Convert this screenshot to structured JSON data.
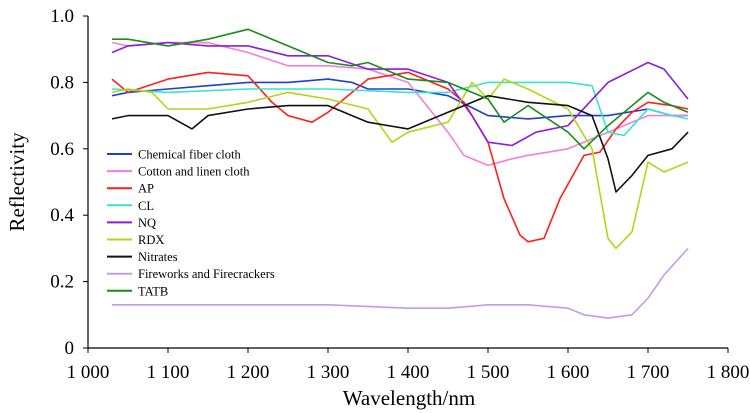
{
  "chart_data": {
    "type": "line",
    "title": "",
    "xlabel": "Wavelength/nm",
    "ylabel": "Reflectivity",
    "xlim": [
      1000,
      1800
    ],
    "ylim": [
      0,
      1.0
    ],
    "x_ticks": [
      1000,
      1100,
      1200,
      1300,
      1400,
      1500,
      1600,
      1700,
      1800
    ],
    "x_tick_labels": [
      "1 000",
      "1 100",
      "1 200",
      "1 300",
      "1 400",
      "1 500",
      "1 600",
      "1 700",
      "1 800"
    ],
    "y_ticks": [
      0,
      0.2,
      0.4,
      0.6,
      0.8,
      1.0
    ],
    "y_tick_labels": [
      "0",
      "0.2",
      "0.4",
      "0.6",
      "0.8",
      "1.0"
    ],
    "grid": false,
    "legend_position": "left-middle",
    "series": [
      {
        "name": "Chemical fiber cloth",
        "color": "#1f3fd1",
        "x": [
          1030,
          1050,
          1100,
          1150,
          1200,
          1250,
          1300,
          1330,
          1350,
          1400,
          1450,
          1500,
          1550,
          1600,
          1650,
          1700,
          1730,
          1750
        ],
        "y": [
          0.76,
          0.77,
          0.78,
          0.79,
          0.8,
          0.8,
          0.81,
          0.8,
          0.78,
          0.78,
          0.76,
          0.7,
          0.69,
          0.7,
          0.7,
          0.72,
          0.7,
          0.7
        ]
      },
      {
        "name": "Cotton and linen cloth",
        "color": "#f37ee0",
        "x": [
          1030,
          1050,
          1100,
          1150,
          1200,
          1250,
          1300,
          1350,
          1400,
          1450,
          1470,
          1500,
          1530,
          1550,
          1600,
          1650,
          1700,
          1750
        ],
        "y": [
          0.92,
          0.91,
          0.92,
          0.92,
          0.89,
          0.85,
          0.85,
          0.84,
          0.8,
          0.65,
          0.58,
          0.55,
          0.57,
          0.58,
          0.6,
          0.65,
          0.7,
          0.7
        ]
      },
      {
        "name": "AP",
        "color": "#ff1f1f",
        "x": [
          1030,
          1050,
          1100,
          1150,
          1200,
          1230,
          1250,
          1280,
          1300,
          1350,
          1400,
          1450,
          1470,
          1500,
          1520,
          1540,
          1550,
          1570,
          1590,
          1620,
          1640,
          1660,
          1680,
          1700,
          1730,
          1750
        ],
        "y": [
          0.81,
          0.77,
          0.81,
          0.83,
          0.82,
          0.74,
          0.7,
          0.68,
          0.71,
          0.81,
          0.83,
          0.78,
          0.74,
          0.62,
          0.45,
          0.34,
          0.32,
          0.33,
          0.45,
          0.58,
          0.59,
          0.66,
          0.71,
          0.74,
          0.73,
          0.72
        ]
      },
      {
        "name": "CL",
        "color": "#35e6c8",
        "x": [
          1030,
          1100,
          1200,
          1300,
          1400,
          1450,
          1500,
          1550,
          1600,
          1630,
          1650,
          1670,
          1700,
          1730,
          1750
        ],
        "y": [
          0.78,
          0.77,
          0.78,
          0.78,
          0.77,
          0.77,
          0.8,
          0.8,
          0.8,
          0.79,
          0.65,
          0.64,
          0.72,
          0.7,
          0.69
        ]
      },
      {
        "name": "NQ",
        "color": "#8a1fd6",
        "x": [
          1030,
          1050,
          1100,
          1150,
          1200,
          1250,
          1300,
          1350,
          1400,
          1450,
          1480,
          1500,
          1530,
          1560,
          1600,
          1650,
          1700,
          1720,
          1750
        ],
        "y": [
          0.89,
          0.91,
          0.92,
          0.91,
          0.91,
          0.88,
          0.88,
          0.84,
          0.84,
          0.8,
          0.7,
          0.62,
          0.61,
          0.65,
          0.67,
          0.8,
          0.86,
          0.84,
          0.75
        ]
      },
      {
        "name": "RDX",
        "color": "#b7d418",
        "x": [
          1030,
          1050,
          1080,
          1100,
          1150,
          1200,
          1250,
          1300,
          1350,
          1380,
          1400,
          1450,
          1480,
          1500,
          1520,
          1550,
          1600,
          1630,
          1650,
          1660,
          1680,
          1700,
          1720,
          1750
        ],
        "y": [
          0.77,
          0.78,
          0.77,
          0.72,
          0.72,
          0.74,
          0.77,
          0.75,
          0.72,
          0.62,
          0.65,
          0.68,
          0.8,
          0.75,
          0.81,
          0.78,
          0.72,
          0.6,
          0.33,
          0.3,
          0.35,
          0.56,
          0.53,
          0.56
        ]
      },
      {
        "name": "Nitrates",
        "color": "#111111",
        "x": [
          1030,
          1050,
          1100,
          1130,
          1150,
          1200,
          1250,
          1300,
          1350,
          1400,
          1450,
          1500,
          1550,
          1600,
          1630,
          1650,
          1660,
          1680,
          1700,
          1730,
          1750
        ],
        "y": [
          0.69,
          0.7,
          0.7,
          0.66,
          0.7,
          0.72,
          0.73,
          0.73,
          0.68,
          0.66,
          0.71,
          0.76,
          0.74,
          0.73,
          0.7,
          0.57,
          0.47,
          0.52,
          0.58,
          0.6,
          0.65
        ]
      },
      {
        "name": "Fireworks and Firecrackers",
        "color": "#c49be8",
        "x": [
          1030,
          1100,
          1200,
          1300,
          1400,
          1450,
          1500,
          1550,
          1600,
          1620,
          1650,
          1680,
          1700,
          1720,
          1750
        ],
        "y": [
          0.13,
          0.13,
          0.13,
          0.13,
          0.12,
          0.12,
          0.13,
          0.13,
          0.12,
          0.1,
          0.09,
          0.1,
          0.15,
          0.22,
          0.3
        ]
      },
      {
        "name": "TATB",
        "color": "#1c8c1c",
        "x": [
          1030,
          1050,
          1100,
          1150,
          1200,
          1250,
          1300,
          1330,
          1350,
          1400,
          1450,
          1500,
          1520,
          1550,
          1600,
          1620,
          1650,
          1700,
          1720,
          1750
        ],
        "y": [
          0.93,
          0.93,
          0.91,
          0.93,
          0.96,
          0.91,
          0.86,
          0.85,
          0.86,
          0.81,
          0.8,
          0.75,
          0.68,
          0.73,
          0.65,
          0.6,
          0.67,
          0.77,
          0.74,
          0.71
        ]
      }
    ]
  }
}
